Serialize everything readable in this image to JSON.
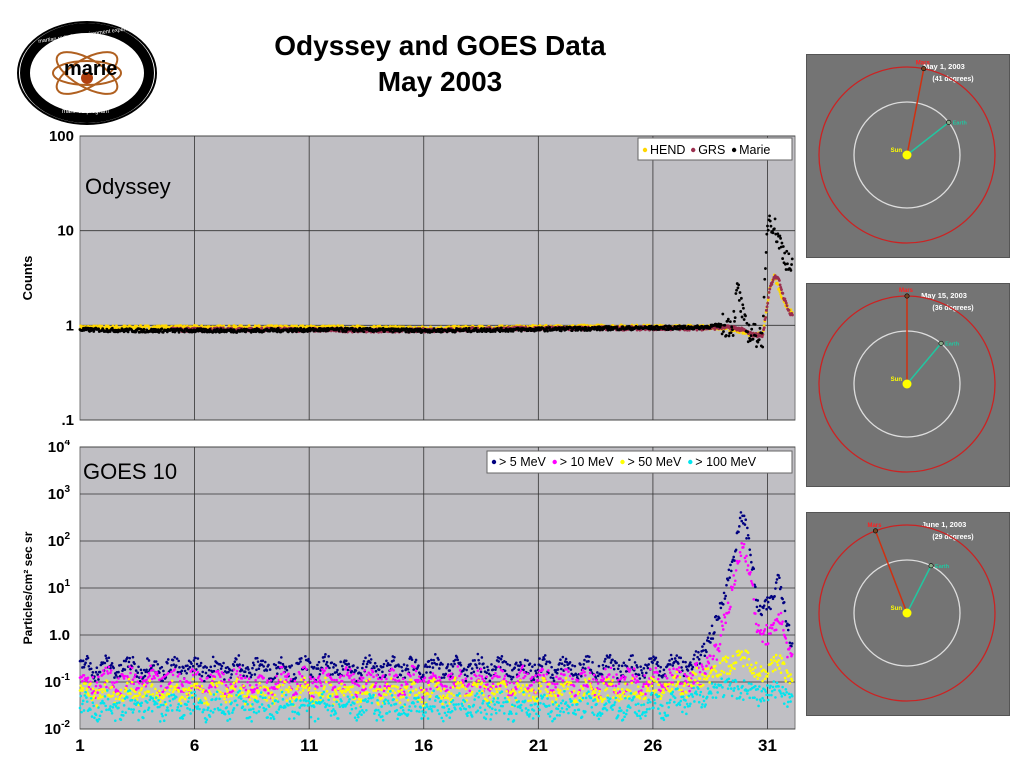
{
  "logo": {
    "name": "marie",
    "ring_text": "martian radiation environment experiment",
    "program": "mars '01 program"
  },
  "title": {
    "line1": "Odyssey and GOES Data",
    "line2": "May 2003"
  },
  "colors": {
    "plot_bg": "#c0bfc4",
    "hend": "#ffd700",
    "grs": "#9b2f4f",
    "marie": "#000000",
    "gt5": "#000080",
    "gt10": "#ff00ff",
    "gt50": "#ffff00",
    "gt100": "#00e5ee",
    "orbit_bg": "#747474",
    "mars_orbit": "#cc2222",
    "earth_orbit": "#dddddd",
    "sun": "#ffff00",
    "earth_line": "#21c7a1",
    "mars_line": "#d03010"
  },
  "chart_data": [
    {
      "type": "scatter",
      "panel_label": "Odyssey",
      "ylabel": "Counts",
      "yscale": "log",
      "xlim": [
        1,
        32.2
      ],
      "ylim": [
        0.1,
        100
      ],
      "ytick_labels": [
        "100",
        "10",
        "1",
        ".1"
      ],
      "ytick_values": [
        100,
        10,
        1,
        0.1
      ],
      "x_gridlines": [
        6,
        11,
        16,
        21,
        26,
        31
      ],
      "legend": [
        "HEND",
        "GRS",
        "Marie"
      ],
      "legend_position": "top-right",
      "series": [
        {
          "name": "HEND",
          "x": [
            1,
            4,
            8,
            12,
            16,
            20,
            24,
            28,
            29,
            29.5,
            30,
            30.3,
            30.8,
            31.1,
            31.3,
            31.7,
            32
          ],
          "y": [
            0.95,
            0.95,
            0.95,
            0.95,
            0.93,
            0.95,
            0.97,
            0.96,
            0.95,
            0.9,
            0.85,
            0.8,
            0.8,
            2.5,
            3.3,
            1.8,
            1.4
          ]
        },
        {
          "name": "GRS",
          "x": [
            5,
            10,
            15,
            20,
            25,
            28,
            29,
            29.5,
            30,
            30.3,
            30.8,
            31.1,
            31.3,
            31.5,
            31.7,
            32
          ],
          "y": [
            0.9,
            0.9,
            0.88,
            0.92,
            0.93,
            0.93,
            0.95,
            0.95,
            0.88,
            0.8,
            0.78,
            2.5,
            3.3,
            3.0,
            2.0,
            1.3
          ]
        },
        {
          "name": "Marie",
          "x": [
            1,
            4,
            8,
            12,
            16,
            20,
            24,
            28,
            29,
            29.5,
            29.7,
            30,
            30.3,
            30.5,
            30.8,
            31.0,
            31.1,
            31.3,
            31.5,
            31.7,
            32
          ],
          "y": [
            0.9,
            0.88,
            0.88,
            0.9,
            0.88,
            0.9,
            0.93,
            0.95,
            1.0,
            1.02,
            2.5,
            1.0,
            0.8,
            0.78,
            0.78,
            12,
            14,
            11,
            8,
            6,
            4
          ]
        }
      ]
    },
    {
      "type": "scatter",
      "panel_label": "GOES 10",
      "ylabel": "Particles/cm² sec sr",
      "yscale": "log",
      "xlim": [
        1,
        32.2
      ],
      "ylim": [
        0.01,
        10000
      ],
      "ytick_labels": [
        {
          "base": "10",
          "exp": "4"
        },
        {
          "base": "10",
          "exp": "3"
        },
        {
          "base": "10",
          "exp": "2"
        },
        {
          "base": "10",
          "exp": "1"
        },
        {
          "base": "1.0",
          "exp": ""
        },
        {
          "base": "10",
          "exp": "-1"
        },
        {
          "base": "10",
          "exp": "-2"
        }
      ],
      "ytick_values": [
        10000,
        1000,
        100,
        10,
        1,
        0.1,
        0.01
      ],
      "xtick_labels": [
        "1",
        "6",
        "11",
        "16",
        "21",
        "26",
        "31"
      ],
      "xtick_values": [
        1,
        6,
        11,
        16,
        21,
        26,
        31
      ],
      "legend": [
        "> 5 MeV",
        "> 10 MeV",
        "> 50 MeV",
        "> 100 MeV"
      ],
      "legend_position": "top-right",
      "series": [
        {
          "name": "> 5 MeV",
          "x": [
            1,
            5,
            10,
            15,
            20,
            25,
            28,
            28.8,
            29.5,
            29.9,
            30.2,
            30.6,
            31.2,
            31.5,
            32
          ],
          "y": [
            0.2,
            0.2,
            0.2,
            0.2,
            0.2,
            0.2,
            0.25,
            2,
            40,
            400,
            100,
            3,
            5,
            20,
            0.8
          ]
        },
        {
          "name": "> 10 MeV",
          "x": [
            1,
            5,
            10,
            15,
            20,
            25,
            28,
            28.8,
            29.5,
            29.9,
            30.2,
            30.6,
            31.2,
            31.5,
            32
          ],
          "y": [
            0.1,
            0.1,
            0.1,
            0.1,
            0.1,
            0.1,
            0.12,
            0.5,
            10,
            90,
            30,
            1,
            1,
            3,
            0.3
          ]
        },
        {
          "name": "> 50 MeV",
          "x": [
            1,
            5,
            10,
            15,
            20,
            25,
            28,
            28.8,
            29.5,
            29.9,
            30.2,
            30.6,
            31.2,
            31.5,
            32
          ],
          "y": [
            0.06,
            0.06,
            0.06,
            0.06,
            0.06,
            0.06,
            0.1,
            0.2,
            0.25,
            0.35,
            0.3,
            0.15,
            0.2,
            0.3,
            0.1
          ]
        },
        {
          "name": "> 100 MeV",
          "x": [
            1,
            5,
            10,
            15,
            20,
            25,
            28,
            28.8,
            29.5,
            29.9,
            30.2,
            30.6,
            31.2,
            31.5,
            32
          ],
          "y": [
            0.03,
            0.03,
            0.03,
            0.03,
            0.03,
            0.03,
            0.04,
            0.08,
            0.07,
            0.07,
            0.07,
            0.05,
            0.06,
            0.08,
            0.04
          ]
        }
      ]
    }
  ],
  "orbits": [
    {
      "date": "May 1,  2003",
      "angle": "(41 degrees)",
      "mars": "Mars",
      "earth": "Earth",
      "sun": "Sun"
    },
    {
      "date": "May 15,  2003",
      "angle": "(36 degrees)",
      "mars": "Mars",
      "earth": "Earth",
      "sun": "Sun"
    },
    {
      "date": "June 1,  2003",
      "angle": "(29 degrees)",
      "mars": "Mars",
      "earth": "Earth",
      "sun": "Sun"
    }
  ]
}
